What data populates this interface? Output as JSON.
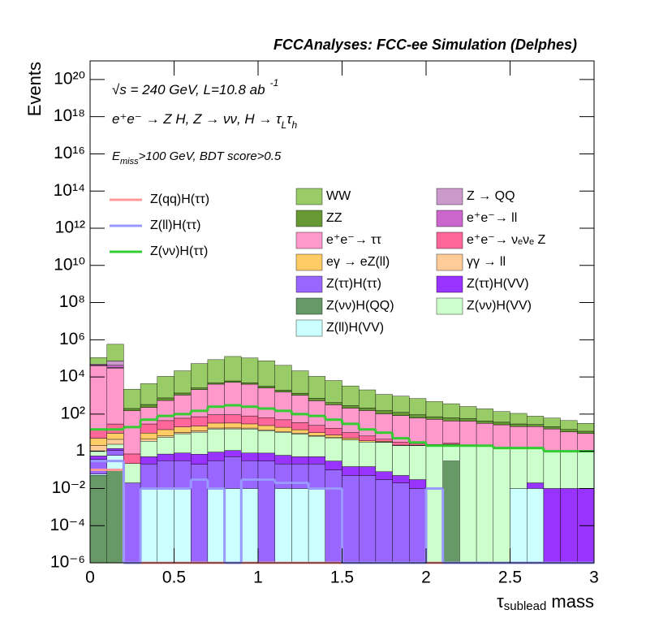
{
  "chart_data": {
    "type": "stacked_histogram",
    "title": "FCCAnalyses: FCC-ee Simulation (Delphes)",
    "y_label": "Events",
    "x_label": [
      "τ",
      "sublead",
      " mass"
    ],
    "annotations": [
      [
        "√s = 240 GeV, L=10.8 ab",
        "-1"
      ],
      [
        "e⁺e⁻ → Z H, Z → νν, H → τ",
        "L",
        "τ",
        "h"
      ],
      [
        "E",
        "miss",
        ">100 GeV, BDT score>0.5"
      ]
    ],
    "log_y": true,
    "xlim": [
      0,
      3
    ],
    "ylim": [
      1e-06,
      1e+21
    ],
    "xticks": [
      0,
      0.5,
      1,
      1.5,
      2,
      2.5,
      3
    ],
    "yticks": [
      {
        "value": 1e-06,
        "label": "10⁻⁶"
      },
      {
        "value": 0.0001,
        "label": "10⁻⁴"
      },
      {
        "value": 0.01,
        "label": "10⁻²"
      },
      1,
      {
        "value": 100,
        "label": "10²"
      },
      {
        "value": 10000.0,
        "label": "10⁴"
      },
      {
        "value": 1000000.0,
        "label": "10⁶"
      },
      {
        "value": 100000000.0,
        "label": "10⁸"
      },
      {
        "value": 10000000000.0,
        "label": "10¹⁰"
      },
      {
        "value": 1000000000000.0,
        "label": "10¹²"
      },
      {
        "value": 100000000000000.0,
        "label": "10¹⁴"
      },
      {
        "value": 1e+16,
        "label": "10¹⁶"
      },
      {
        "value": 1e+18,
        "label": "10¹⁸"
      },
      {
        "value": 1e+20,
        "label": "10²⁰"
      }
    ],
    "bins": [
      0,
      0.1,
      0.2,
      0.3,
      0.4,
      0.5,
      0.6,
      0.7,
      0.8,
      0.9,
      1,
      1.1,
      1.2,
      1.3,
      1.4,
      1.5,
      1.6,
      1.7,
      1.8,
      1.9,
      2,
      2.1,
      2.2,
      2.3,
      2.4,
      2.5,
      2.6,
      2.7,
      2.8,
      2.9,
      3
    ],
    "series": [
      {
        "name": "Z(νν)H(QQ)",
        "color": "#669966",
        "values": [
          0.05,
          0.1,
          0,
          0,
          0,
          0,
          0,
          0,
          0,
          0,
          0,
          0,
          0,
          0,
          0,
          0,
          0,
          0,
          0,
          0,
          0,
          0.3,
          0,
          0,
          0,
          0,
          0,
          0,
          0,
          0
        ]
      },
      {
        "name": "Z(ll)H(VV)",
        "color": "#ccffff",
        "values": [
          0.01,
          0.5,
          0,
          0.01,
          0.01,
          0.01,
          0,
          0.01,
          0.01,
          0.01,
          0,
          0.01,
          0.01,
          0.01,
          0,
          0,
          0,
          0,
          0,
          0,
          0,
          0,
          0,
          0,
          0,
          0.01,
          0.01,
          0,
          0,
          0
        ]
      },
      {
        "name": "Z(ττ)H(ττ)",
        "color": "#9966ff",
        "values": [
          0.3,
          0.5,
          0.02,
          0.2,
          0.3,
          0.3,
          0.2,
          0.3,
          0.5,
          0.3,
          0.3,
          0.2,
          0.2,
          0.2,
          0.1,
          0.05,
          0.05,
          0.03,
          0.02,
          0.01,
          0,
          0,
          0,
          0,
          0,
          0,
          0,
          0,
          0,
          0
        ]
      },
      {
        "name": "Z(ττ)H(VV)",
        "color": "#9933ff",
        "values": [
          0.2,
          0.3,
          0,
          0.3,
          0.4,
          0.5,
          0.5,
          0.6,
          0.6,
          0.5,
          0.5,
          0.4,
          0.3,
          0.3,
          0.2,
          0.1,
          0.1,
          0.05,
          0.03,
          0.02,
          0,
          0,
          0,
          0,
          0,
          0,
          0.01,
          0.01,
          0.01,
          0.01
        ]
      },
      {
        "name": "Z(νν)H(VV)",
        "color": "#ccffcc",
        "values": [
          0.5,
          1,
          0.2,
          3,
          5,
          8,
          10,
          15,
          15,
          15,
          12,
          10,
          8,
          6,
          5,
          4,
          3,
          3,
          2,
          2,
          2,
          2,
          2,
          2,
          1.5,
          1.5,
          1.5,
          1,
          1,
          1
        ]
      },
      {
        "name": "γγ → ll",
        "color": "#ffcc99",
        "values": [
          1,
          2,
          0,
          1,
          1,
          1.5,
          2,
          2,
          2,
          2,
          1.5,
          1,
          1,
          0.5,
          0.2,
          0,
          0,
          0.1,
          0.1,
          0.1,
          0.02,
          0.1,
          0.05,
          0,
          0.05,
          0.01,
          0,
          0,
          0,
          0
        ]
      },
      {
        "name": "eγ → eZ(ll)",
        "color": "#ffcc66",
        "values": [
          3,
          5,
          0,
          5,
          8,
          10,
          10,
          15,
          15,
          12,
          10,
          8,
          5,
          3,
          2,
          1,
          0.5,
          0.3,
          0,
          0,
          0,
          0,
          0,
          0,
          0,
          0,
          0,
          0,
          0,
          0
        ]
      },
      {
        "name": "e⁺e⁻→ νₑνₑ Z",
        "color": "#ff6699",
        "values": [
          10,
          20,
          0.5,
          20,
          30,
          40,
          50,
          60,
          60,
          50,
          40,
          30,
          20,
          15,
          10,
          5,
          3,
          1,
          1,
          0.5,
          0.3,
          0.3,
          0.2,
          0.2,
          0.1,
          0.1,
          0,
          0,
          0,
          0
        ]
      },
      {
        "name": "e⁺e⁻→ ττ",
        "color": "#ff99cc",
        "values": [
          40000,
          30000,
          150,
          200,
          500,
          1000,
          2000,
          4000,
          5000,
          4000,
          2500,
          1500,
          1000,
          500,
          300,
          200,
          150,
          100,
          80,
          60,
          50,
          40,
          40,
          30,
          25,
          20,
          20,
          15,
          10,
          8
        ]
      },
      {
        "name": "ZZ",
        "color": "#669933",
        "values": [
          1000,
          2000,
          50,
          100,
          200,
          300,
          500,
          800,
          1000,
          800,
          600,
          400,
          300,
          200,
          100,
          80,
          60,
          50,
          40,
          30,
          20,
          20,
          15,
          10,
          10,
          8,
          6,
          5,
          4,
          3
        ]
      },
      {
        "name": "e⁺e⁻→ ll",
        "color": "#cc66cc",
        "values": [
          3000,
          10000,
          0,
          0,
          0,
          0,
          0,
          0,
          0,
          0,
          0,
          0,
          0,
          0,
          0,
          0,
          0,
          0,
          0,
          0,
          0,
          0,
          0,
          0,
          0,
          0,
          0,
          0,
          0,
          0
        ]
      },
      {
        "name": "Z → QQ",
        "color": "#cc99cc",
        "values": [
          5000,
          30000,
          0,
          0,
          0,
          0,
          0,
          0,
          0,
          0,
          0,
          0,
          0,
          0,
          0,
          0,
          0,
          0,
          0,
          0,
          0,
          0,
          0,
          0,
          0,
          0,
          0,
          0,
          0,
          0
        ]
      },
      {
        "name": "WW",
        "color": "#99cc66",
        "values": [
          60000,
          500000,
          2000,
          4000,
          10000,
          20000,
          50000,
          80000,
          120000,
          100000,
          70000,
          40000,
          20000,
          10000,
          6000,
          3000,
          1800,
          1000,
          800,
          600,
          400,
          300,
          200,
          150,
          100,
          80,
          50,
          40,
          30,
          20
        ]
      }
    ],
    "line_series": [
      {
        "name": "Z(qq)H(ττ)",
        "color": "#ff9999",
        "values": [
          0.1,
          0.1,
          0,
          0,
          0,
          0,
          0,
          0,
          0,
          0,
          0,
          0,
          0,
          0,
          0,
          0,
          0,
          0,
          0,
          0,
          0,
          0,
          0,
          0,
          0,
          0,
          0,
          0,
          0,
          0
        ]
      },
      {
        "name": "Z(ll)H(ττ)",
        "color": "#9999ff",
        "values": [
          0.3,
          0.3,
          0,
          0.01,
          0.01,
          0.01,
          0.03,
          0.01,
          0,
          0.03,
          0.03,
          0.02,
          0.02,
          0.01,
          0.01,
          0,
          0,
          0,
          0,
          0,
          0.01,
          0,
          0,
          0,
          0,
          0,
          0,
          0,
          0,
          0
        ]
      },
      {
        "name": "Z(νν)H(ττ)",
        "color": "#33cc33",
        "values": [
          15,
          15,
          20,
          50,
          80,
          100,
          150,
          250,
          300,
          250,
          200,
          150,
          100,
          80,
          50,
          30,
          15,
          10,
          5,
          3,
          2,
          2,
          2,
          2,
          1.5,
          1.5,
          1.5,
          1,
          1,
          1
        ]
      }
    ]
  }
}
